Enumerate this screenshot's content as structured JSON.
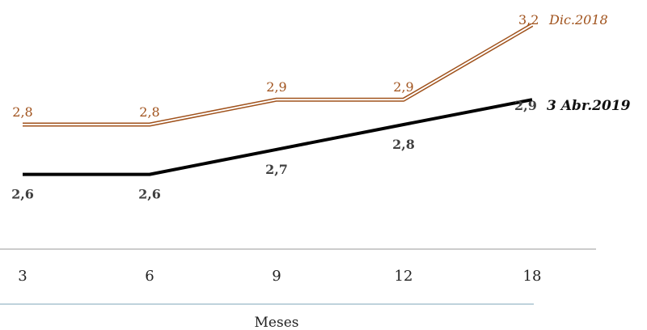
{
  "chart_data": {
    "type": "line",
    "categories": [
      "3",
      "6",
      "9",
      "12",
      "18"
    ],
    "xlabel": "Meses",
    "ylim": [
      2.3,
      3.3
    ],
    "grid": false,
    "series": [
      {
        "name": "Dic.2018",
        "values": [
          2.8,
          2.8,
          2.9,
          2.9,
          3.2
        ],
        "labels": [
          "2,8",
          "2,8",
          "2,9",
          "2,9",
          "3,2"
        ],
        "end_tag": "3,2",
        "color": "#a0521c",
        "style": "double"
      },
      {
        "name": "3 Abr.2019",
        "values": [
          2.6,
          2.6,
          2.7,
          2.8,
          2.9
        ],
        "labels": [
          "2,6",
          "2,6",
          "2,7",
          "2,8",
          "2,9"
        ],
        "end_tag": "2,9",
        "color": "#000000",
        "style": "solid"
      }
    ]
  }
}
